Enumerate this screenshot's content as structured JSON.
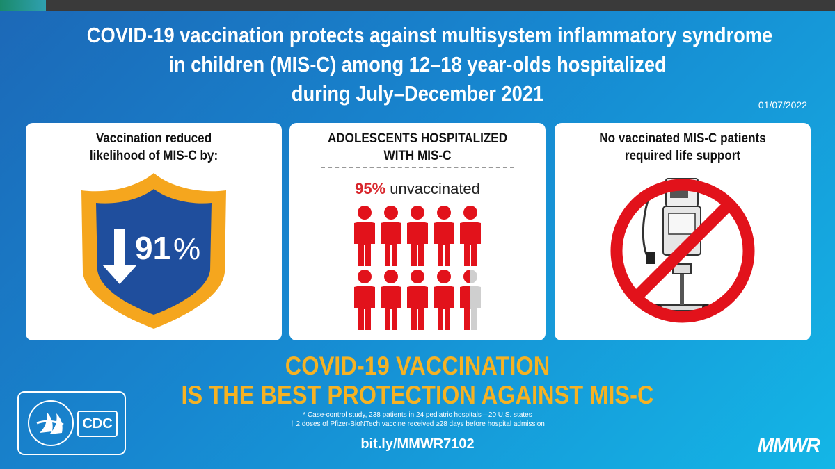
{
  "title": {
    "line1": "COVID-19 vaccination protects against multisystem inflammatory syndrome",
    "line2": "in children (MIS-C) among 12–18 year-olds hospitalized",
    "line3": "during July–December 2021"
  },
  "date": "01/07/2022",
  "panel1": {
    "head1": "Vaccination reduced",
    "head2": "likelihood of MIS-C by:",
    "value": "91",
    "unit": "%",
    "icon": "shield-down-arrow-icon"
  },
  "panel2": {
    "head1": "ADOLESCENTS HOSPITALIZED",
    "head2": "WITH MIS-C",
    "stat_pct": "95%",
    "stat_text": " unvaccinated",
    "unvaccinated_fraction": 0.95,
    "icon": "person-icon",
    "colors": {
      "unvaccinated": "#e2121b",
      "vaccinated": "#cfcfcf"
    }
  },
  "panel3": {
    "head1": "No vaccinated MIS-C patients",
    "head2": "required life support",
    "icon": "no-ventilator-icon"
  },
  "tagline": {
    "line1": "COVID-19 VACCINATION",
    "line2": "IS THE BEST PROTECTION AGAINST MIS-C"
  },
  "footnotes": {
    "f1": "* Case-control study, 238 patients in 24 pediatric hospitals—20 U.S. states",
    "f2": "† 2 doses of Pfizer-BioNTech vaccine received ≥28 days before hospital admission"
  },
  "link": "bit.ly/MMWR7102",
  "logos": {
    "hhs": "hhs-eagle-seal-icon",
    "cdc": "CDC"
  },
  "brand": "MMWR",
  "colors": {
    "accent": "#f5b223",
    "red": "#e2121b",
    "shield_blue": "#1f4e9d"
  }
}
